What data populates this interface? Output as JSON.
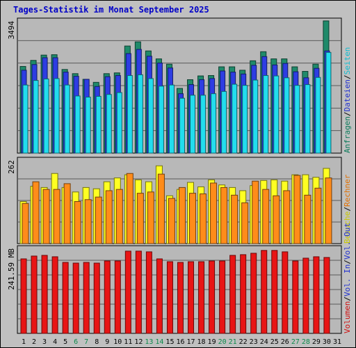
{
  "title": "Tages-Statistik im Monat September 2025",
  "colors": {
    "background": "#c0c0c0",
    "plot_bg": "#b8b8b8",
    "grid": "#5a5a5a",
    "anfragen": "#1f8a6a",
    "dateien": "#2d3de3",
    "seiten": "#22ddee",
    "besuche": "#ffff22",
    "rechner": "#ff8c1a",
    "volumen": "#e81515",
    "weekday_label": "#000000",
    "weekend_label": "#0a8a4a"
  },
  "chart_data": [
    {
      "type": "bar",
      "title": "",
      "ylabel": "3494",
      "ylim": [
        0,
        3494
      ],
      "right_labels": [
        {
          "text": "Anfragen",
          "color": "#0a7a5a"
        },
        {
          "text": "Dateien",
          "color": "#2030d0"
        },
        {
          "text": "Seiten",
          "color": "#10bcd0"
        }
      ],
      "series": [
        {
          "name": "Anfragen",
          "values": [
            2290,
            2450,
            2590,
            2600,
            2210,
            2100,
            1950,
            1870,
            2100,
            2120,
            2830,
            2940,
            2700,
            2490,
            2350,
            1710,
            1940,
            2040,
            2050,
            2280,
            2280,
            2190,
            2440,
            2680,
            2490,
            2490,
            2280,
            2160,
            2350,
            3494
          ]
        },
        {
          "name": "Dateien",
          "values": [
            2190,
            2340,
            2520,
            2520,
            2140,
            2030,
            1950,
            1760,
            2020,
            2050,
            2630,
            2740,
            2560,
            2380,
            2250,
            1570,
            1810,
            1940,
            1970,
            2170,
            2140,
            2090,
            2320,
            2550,
            2330,
            2370,
            2150,
            1990,
            2240,
            2700
          ]
        },
        {
          "name": "Seiten",
          "values": [
            1800,
            1920,
            1960,
            1970,
            1800,
            1510,
            1480,
            1500,
            1550,
            1600,
            2050,
            2070,
            1970,
            1770,
            1800,
            1450,
            1530,
            1530,
            1570,
            1630,
            1820,
            1790,
            1930,
            2050,
            2040,
            1990,
            1790,
            1810,
            2000,
            2660
          ]
        }
      ]
    },
    {
      "type": "bar",
      "title": "",
      "ylabel": "262",
      "ylim": [
        0,
        262
      ],
      "right_labels": [
        {
          "text": "Besuche",
          "color": "#c8c800"
        },
        {
          "text": "Rechner",
          "color": "#e07000"
        }
      ],
      "series": [
        {
          "name": "Besuche",
          "values": [
            132,
            180,
            176,
            220,
            176,
            162,
            176,
            172,
            194,
            206,
            216,
            200,
            194,
            244,
            150,
            170,
            192,
            178,
            200,
            184,
            176,
            166,
            182,
            198,
            200,
            196,
            216,
            216,
            208,
            236
          ]
        },
        {
          "name": "Rechner",
          "values": [
            126,
            194,
            170,
            170,
            188,
            132,
            138,
            146,
            166,
            170,
            220,
            158,
            162,
            218,
            142,
            176,
            158,
            156,
            190,
            176,
            152,
            128,
            196,
            170,
            150,
            166,
            214,
            152,
            174,
            206
          ]
        }
      ]
    },
    {
      "type": "bar",
      "title": "",
      "ylabel": "241.59 MB",
      "ylim": [
        0,
        241.59
      ],
      "right_labels": [
        {
          "text": "Volumen",
          "color": "#d01010"
        },
        {
          "text": "Vol. In",
          "color": "#2030d0"
        },
        {
          "text": "Vol. Out",
          "color": "#2030d0"
        }
      ],
      "series": [
        {
          "name": "Volumen",
          "values": [
            212,
            220,
            222,
            218,
            202,
            200,
            202,
            200,
            206,
            206,
            234,
            234,
            232,
            212,
            204,
            202,
            204,
            204,
            206,
            206,
            222,
            224,
            228,
            236,
            236,
            232,
            206,
            214,
            218,
            216
          ]
        }
      ]
    }
  ],
  "x_axis": {
    "days": [
      "1",
      "2",
      "3",
      "4",
      "5",
      "6",
      "7",
      "8",
      "9",
      "10",
      "11",
      "12",
      "13",
      "14",
      "15",
      "16",
      "17",
      "18",
      "19",
      "20",
      "21",
      "22",
      "23",
      "24",
      "25",
      "26",
      "27",
      "28",
      "29",
      "30",
      "31"
    ],
    "weekend_days": [
      "6",
      "7",
      "13",
      "14",
      "20",
      "21",
      "27",
      "28"
    ]
  }
}
